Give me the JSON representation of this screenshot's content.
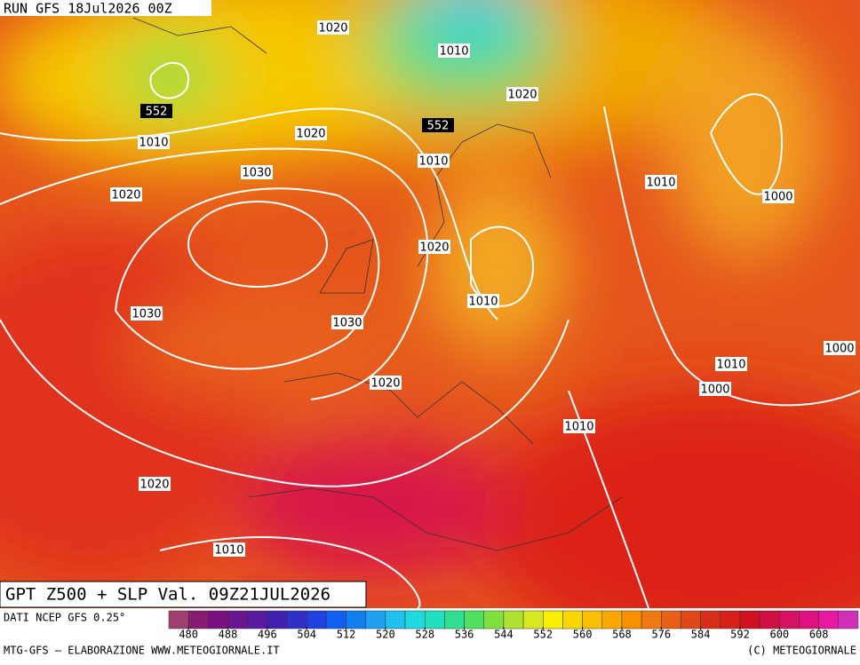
{
  "header": {
    "run": "RUN GFS 18Jul2026 00Z"
  },
  "isobar_labels": [
    1020,
    1010,
    1020,
    1010,
    1020,
    1010,
    1030,
    1020,
    1010,
    1000,
    1020,
    1010,
    1030,
    1030,
    1000,
    1010,
    1020,
    1000,
    1010,
    1020,
    1010
  ],
  "height_labels": [
    552,
    552
  ],
  "footer": {
    "title": "GPT Z500 + SLP Val. 09Z21JUL2026",
    "source": "DATI NCEP GFS 0.25°",
    "credit": "MTG-GFS — ELABORAZIONE WWW.METEOGIORNALE.IT",
    "copyright": "(C) METEOGIORNALE"
  },
  "color_scale": {
    "ticks": [
      480,
      488,
      496,
      504,
      512,
      520,
      528,
      536,
      544,
      552,
      560,
      568,
      576,
      584,
      592,
      600,
      608
    ]
  }
}
